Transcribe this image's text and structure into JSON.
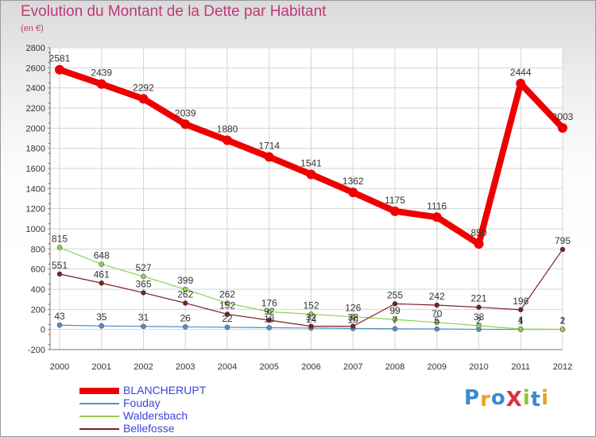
{
  "title": "Evolution du Montant de la Dette par Habitant",
  "subtitle": "(en €)",
  "brand": {
    "text": "ProXiti",
    "letter_colors": [
      "#3a8ad3",
      "#e8a222",
      "#3a8ad3",
      "#d8323e",
      "#8fc43a",
      "#3a8ad3",
      "#e8a222"
    ]
  },
  "chart_data": {
    "type": "line",
    "title": "Evolution du Montant de la Dette par Habitant",
    "ylabel": "(en €)",
    "xlabel": "",
    "ylim": [
      -200,
      2800
    ],
    "yticks": [
      -200,
      0,
      200,
      400,
      600,
      800,
      1000,
      1200,
      1400,
      1600,
      1800,
      2000,
      2200,
      2400,
      2600,
      2800
    ],
    "x": [
      "2000",
      "2001",
      "2002",
      "2003",
      "2004",
      "2005",
      "2006",
      "2007",
      "2008",
      "2009",
      "2010",
      "2011",
      "2012"
    ],
    "grid": true,
    "legend_position": "bottom-left",
    "series": [
      {
        "name": "BLANCHERUPT",
        "color": "#ee0000",
        "values": [
          2581,
          2439,
          2292,
          2039,
          1880,
          1714,
          1541,
          1362,
          1175,
          1116,
          850,
          2444,
          2003
        ]
      },
      {
        "name": "Fouday",
        "color": "#4f90cc",
        "values": [
          43,
          35,
          31,
          26,
          22,
          18,
          14,
          10,
          7,
          5,
          2,
          1,
          1
        ]
      },
      {
        "name": "Waldersbach",
        "color": "#8fd14f",
        "values": [
          815,
          648,
          527,
          399,
          262,
          176,
          152,
          126,
          99,
          70,
          38,
          4,
          2
        ]
      },
      {
        "name": "Bellefosse",
        "color": "#7a1f22",
        "values": [
          551,
          461,
          365,
          262,
          152,
          92,
          32,
          32,
          255,
          242,
          221,
          196,
          795
        ]
      }
    ]
  }
}
